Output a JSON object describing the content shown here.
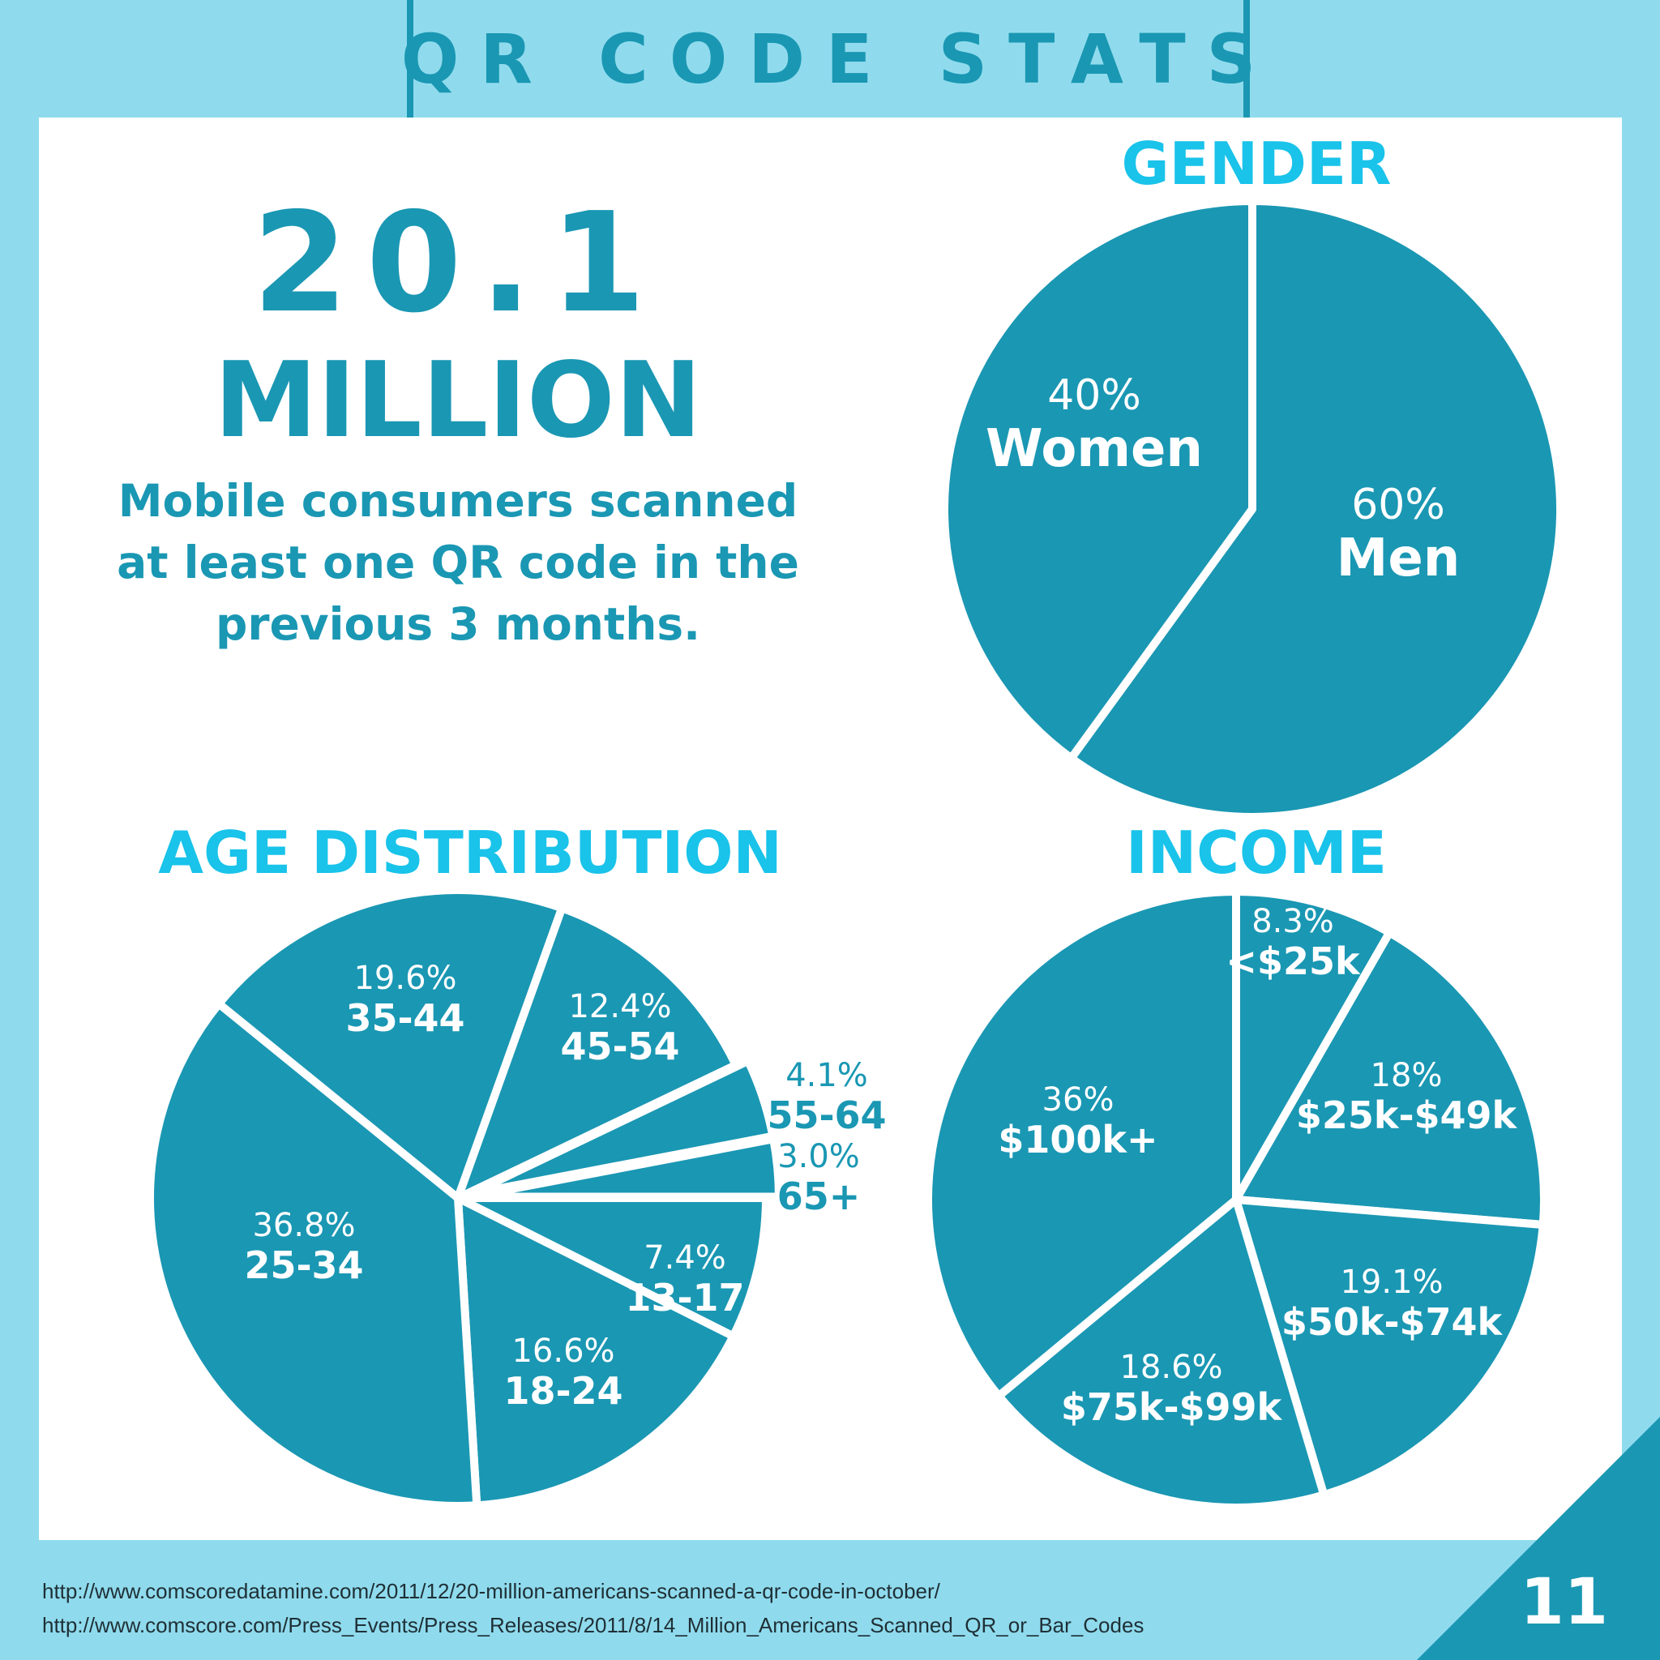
{
  "title": "QR CODE STATS",
  "headline": {
    "number": "20.1",
    "unit": "MILLION",
    "lines": [
      "Mobile consumers scanned",
      "at least one QR code in the",
      "previous 3 months."
    ]
  },
  "sources": [
    "http://www.comscoredatamine.com/2011/12/20-million-americans-scanned-a-qr-code-in-october/",
    "http://www.comscore.com/Press_Events/Press_Releases/2011/8/14_Million_Americans_Scanned_QR_or_Bar_Codes"
  ],
  "page_number": "11",
  "colors": {
    "slice": "#1a97b3",
    "title": "#19c3ea",
    "background": "#8fdbed",
    "panel": "#ffffff"
  },
  "chart_data": [
    {
      "type": "pie",
      "title": "GENDER",
      "categories": [
        "Men",
        "Women"
      ],
      "values": [
        60,
        40
      ],
      "percent_labels": [
        "60%",
        "40%"
      ]
    },
    {
      "type": "pie",
      "title": "AGE DISTRIBUTION",
      "categories": [
        "13-17",
        "18-24",
        "25-34",
        "35-44",
        "45-54",
        "55-64",
        "65+"
      ],
      "values": [
        7.4,
        16.6,
        36.8,
        19.6,
        12.4,
        4.1,
        3.0
      ],
      "percent_labels": [
        "7.4%",
        "16.6%",
        "36.8%",
        "19.6%",
        "12.4%",
        "4.1%",
        "3.0%"
      ]
    },
    {
      "type": "pie",
      "title": "INCOME",
      "categories": [
        "<$25k",
        "$25k-$49k",
        "$50k-$74k",
        "$75k-$99k",
        "$100k+"
      ],
      "values": [
        8.3,
        18,
        19.1,
        18.6,
        36
      ],
      "percent_labels": [
        "8.3%",
        "18%",
        "19.1%",
        "18.6%",
        "36%"
      ]
    }
  ]
}
